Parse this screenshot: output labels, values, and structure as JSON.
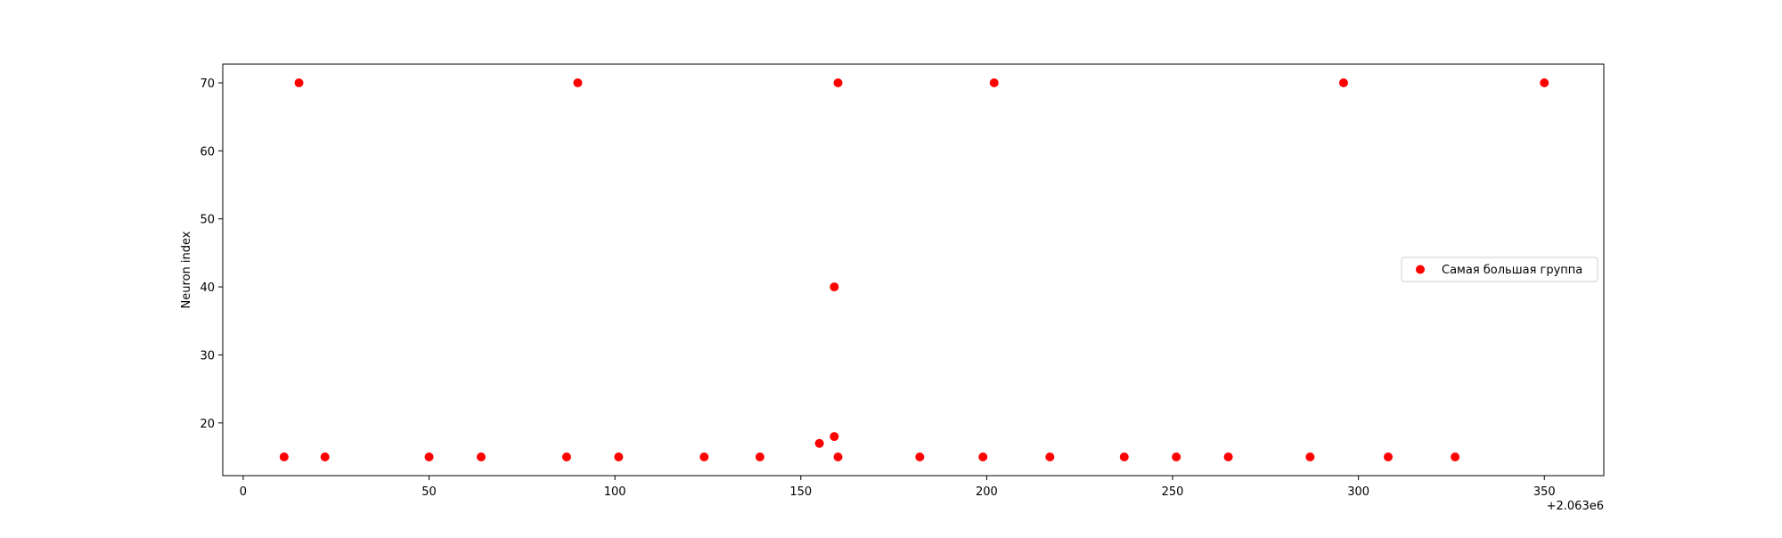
{
  "chart_data": {
    "type": "scatter",
    "title": "",
    "xlabel": "",
    "ylabel": "Neuron index",
    "x_offset_label": "+2.063e6",
    "x_offset": 2063000,
    "xlim": [
      2062994.5,
      2063366
    ],
    "ylim": [
      12.25,
      72.75
    ],
    "xticks": [
      0,
      50,
      100,
      150,
      200,
      250,
      300,
      350
    ],
    "yticks": [
      20,
      30,
      40,
      50,
      60,
      70
    ],
    "grid": false,
    "legend_position": "center-right",
    "series": [
      {
        "name": "Самая большая группа",
        "color": "#ff0000",
        "points": [
          [
            2063011,
            15
          ],
          [
            2063015,
            70
          ],
          [
            2063022,
            15
          ],
          [
            2063050,
            15
          ],
          [
            2063064,
            15
          ],
          [
            2063087,
            15
          ],
          [
            2063090,
            70
          ],
          [
            2063101,
            15
          ],
          [
            2063124,
            15
          ],
          [
            2063139,
            15
          ],
          [
            2063155,
            17
          ],
          [
            2063159,
            18
          ],
          [
            2063159,
            40
          ],
          [
            2063160,
            15
          ],
          [
            2063160,
            70
          ],
          [
            2063182,
            15
          ],
          [
            2063199,
            15
          ],
          [
            2063202,
            70
          ],
          [
            2063217,
            15
          ],
          [
            2063237,
            15
          ],
          [
            2063251,
            15
          ],
          [
            2063265,
            15
          ],
          [
            2063287,
            15
          ],
          [
            2063296,
            70
          ],
          [
            2063308,
            15
          ],
          [
            2063326,
            15
          ],
          [
            2063350,
            70
          ]
        ]
      }
    ]
  }
}
